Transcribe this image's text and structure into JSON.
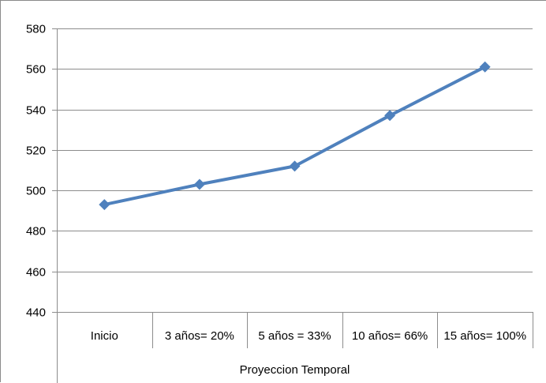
{
  "chart_data": {
    "type": "line",
    "categories": [
      "Inicio",
      "3 años=  20%",
      "5 años = 33%",
      "10 años=  66%",
      "15 años=  100%"
    ],
    "series": [
      {
        "values": [
          493,
          503,
          512,
          537,
          561
        ]
      }
    ],
    "xlabel": "Proyeccion Temporal",
    "ylabel": "",
    "ylim": [
      440,
      580
    ],
    "yticks": [
      "440",
      "460",
      "480",
      "500",
      "520",
      "540",
      "560",
      "580"
    ],
    "grid": true,
    "legend": "none",
    "marker": "diamond",
    "line_color": "#4F81BD"
  }
}
